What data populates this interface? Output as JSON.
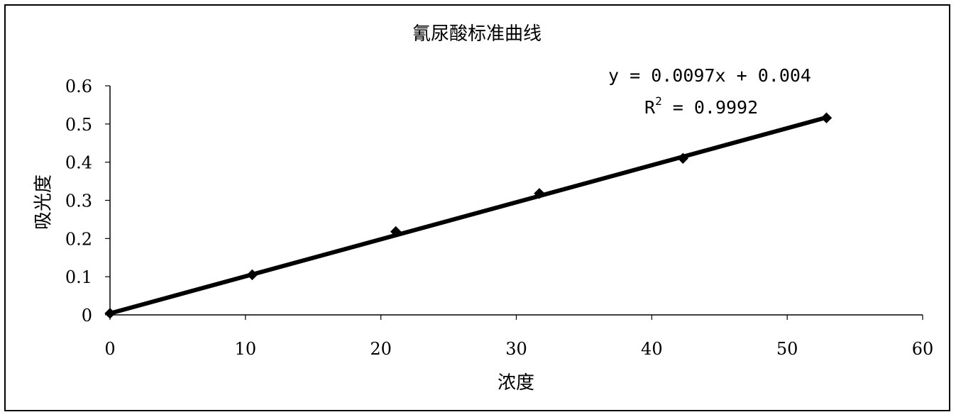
{
  "chart_data": {
    "type": "scatter",
    "title": "氰尿酸标准曲线",
    "xlabel": "浓度",
    "ylabel": "吸光度",
    "xlim": [
      0,
      60
    ],
    "ylim": [
      0,
      0.6
    ],
    "x_ticks": [
      "0",
      "10",
      "20",
      "30",
      "40",
      "50",
      "60"
    ],
    "y_ticks": [
      "0",
      "0.1",
      "0.2",
      "0.3",
      "0.4",
      "0.5",
      "0.6"
    ],
    "grid": false,
    "legend": "none",
    "series": [
      {
        "x": [
          0,
          10.5,
          21.1,
          31.7,
          42.3,
          52.9
        ],
        "y": [
          0.004,
          0.105,
          0.218,
          0.318,
          0.41,
          0.516
        ],
        "marker": "diamond",
        "color": "#000000"
      }
    ],
    "trendline": {
      "type": "linear",
      "slope": 0.0097,
      "intercept": 0.004,
      "x_range": [
        0,
        52.9
      ],
      "color": "#000000"
    },
    "annotations": {
      "equation": "y = 0.0097x + 0.004",
      "r2_prefix": "R",
      "r2_sup": "2",
      "r2_rest": " = 0.9992"
    }
  }
}
